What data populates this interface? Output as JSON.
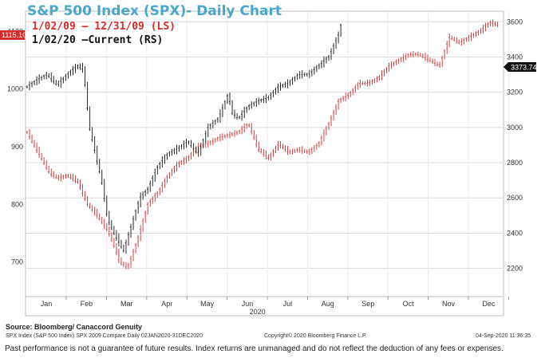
{
  "chart_data": {
    "type": "line",
    "title": "S&P 500 Index (SPX)- Daily Chart",
    "legend": [
      {
        "label": "1/02/09 – 12/31/09 (LS)",
        "color": "#d42b2b"
      },
      {
        "label": "1/02/20 –Current (RS)",
        "color": "#111111"
      }
    ],
    "x_labels": [
      "Jan",
      "Feb",
      "Mar",
      "Apr",
      "May",
      "Jun",
      "Jul",
      "Aug",
      "Sep",
      "Oct",
      "Nov",
      "Dec"
    ],
    "year_label": "2020",
    "left_axis": {
      "ticks": [
        700,
        800,
        900,
        1000,
        1100
      ],
      "range": [
        640,
        1135
      ]
    },
    "right_axis": {
      "ticks": [
        2200,
        2400,
        2600,
        2800,
        3000,
        3200,
        3400,
        3600
      ],
      "range": [
        2040,
        3660
      ]
    },
    "left_flag": "1115.10",
    "right_flag": "3373.74",
    "series": [
      {
        "name": "1/02/09 – 12/31/09 (LS)",
        "axis": "left",
        "x": [
          0,
          0.15,
          0.35,
          0.55,
          0.75,
          1.0,
          1.25,
          1.5,
          1.75,
          2.0,
          2.15,
          2.3,
          2.5,
          2.75,
          3.0,
          3.25,
          3.5,
          3.75,
          4.0,
          4.25,
          4.5,
          4.75,
          5.0,
          5.25,
          5.5,
          5.75,
          6.0,
          6.25,
          6.5,
          6.75,
          7.0,
          7.25,
          7.5,
          7.75,
          8.0,
          8.25,
          8.5,
          8.75,
          9.0,
          9.25,
          9.5,
          9.75,
          10.0,
          10.25,
          10.5,
          10.75,
          11.0,
          11.25,
          11.5,
          11.75
        ],
        "y": [
          925,
          905,
          880,
          855,
          845,
          850,
          840,
          800,
          780,
          755,
          730,
          700,
          690,
          740,
          800,
          820,
          850,
          870,
          880,
          900,
          905,
          915,
          920,
          925,
          940,
          895,
          880,
          905,
          890,
          895,
          890,
          905,
          940,
          980,
          990,
          1010,
          1010,
          1020,
          1040,
          1050,
          1060,
          1060,
          1050,
          1040,
          1090,
          1080,
          1090,
          1100,
          1115,
          1110
        ]
      },
      {
        "name": "1/02/20 –Current (RS)",
        "axis": "right",
        "x": [
          0,
          0.25,
          0.5,
          0.75,
          1.0,
          1.25,
          1.4,
          1.55,
          1.7,
          1.85,
          2.0,
          2.2,
          2.4,
          2.6,
          2.8,
          3.0,
          3.25,
          3.5,
          3.75,
          4.0,
          4.25,
          4.5,
          4.75,
          5.0,
          5.1,
          5.25,
          5.5,
          5.75,
          6.0,
          6.25,
          6.5,
          6.75,
          7.0,
          7.25,
          7.5,
          7.75,
          7.8,
          7.85
        ],
        "y": [
          3230,
          3270,
          3300,
          3240,
          3300,
          3350,
          3330,
          3000,
          2850,
          2700,
          2480,
          2380,
          2300,
          2450,
          2600,
          2650,
          2780,
          2850,
          2880,
          2920,
          2850,
          3000,
          3050,
          3190,
          3080,
          3050,
          3120,
          3150,
          3170,
          3230,
          3250,
          3300,
          3300,
          3350,
          3400,
          3530,
          3580,
          3370
        ]
      }
    ]
  },
  "source_label": "Source: Bloomberg/ Canaccord Genuity",
  "footer_left": "SPX Index (S&P 500 Index) SPX 2009 Compare  Daily 02JAN2020-31DEC2020",
  "footer_mid": "Copyright© 2020 Bloomberg Finance L.P.",
  "footer_right": "04-Sep-2020 11:36:35",
  "disclaimer": "Past performance is not a guarantee of future results. Index returns are unmanaged  and do not reflect the deduction of any fees or expenses."
}
